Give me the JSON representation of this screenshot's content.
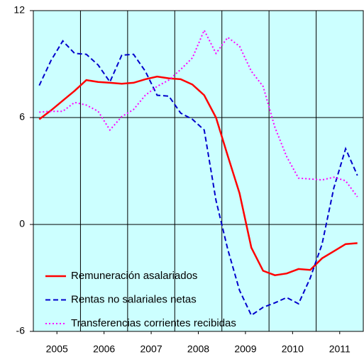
{
  "chart_data": {
    "type": "line",
    "x": [
      2005.125,
      2005.375,
      2005.625,
      2005.875,
      2006.125,
      2006.375,
      2006.625,
      2006.875,
      2007.125,
      2007.375,
      2007.625,
      2007.875,
      2008.125,
      2008.375,
      2008.625,
      2008.875,
      2009.125,
      2009.375,
      2009.625,
      2009.875,
      2010.125,
      2010.375,
      2010.625,
      2010.875,
      2011.125,
      2011.375,
      2011.625,
      2011.875
    ],
    "xlim": [
      2005,
      2012
    ],
    "xticks": [
      {
        "value": 2005.5,
        "label": "2005"
      },
      {
        "value": 2006.5,
        "label": "2006"
      },
      {
        "value": 2007.5,
        "label": "2007"
      },
      {
        "value": 2008.5,
        "label": "2008"
      },
      {
        "value": 2009.5,
        "label": "2009"
      },
      {
        "value": 2010.5,
        "label": "2010"
      },
      {
        "value": 2011.5,
        "label": "2011"
      }
    ],
    "ylim": [
      -6,
      12
    ],
    "yticks": [
      -6,
      0,
      6,
      12
    ],
    "grid": true,
    "legend": "lower left",
    "series": [
      {
        "name": "Remuneración asalariados",
        "color": "#ff0000",
        "line_style": "solid",
        "values": [
          5.9,
          6.4,
          6.95,
          7.5,
          8.1,
          8.0,
          7.95,
          7.9,
          7.95,
          8.15,
          8.3,
          8.2,
          8.15,
          7.85,
          7.25,
          6.0,
          3.85,
          1.75,
          -1.3,
          -2.6,
          -2.85,
          -2.75,
          -2.5,
          -2.55,
          -1.9,
          -1.5,
          -1.1,
          -1.05
        ]
      },
      {
        "name": "Rentas no salariales netas",
        "color": "#0000cc",
        "line_style": "dashed",
        "values": [
          7.8,
          9.2,
          10.3,
          9.6,
          9.55,
          8.95,
          8.0,
          9.5,
          9.55,
          8.6,
          7.25,
          7.2,
          6.25,
          5.9,
          5.3,
          1.35,
          -1.4,
          -3.7,
          -5.1,
          -4.65,
          -4.4,
          -4.1,
          -4.45,
          -3.0,
          -1.1,
          2.05,
          4.25,
          2.75
        ]
      },
      {
        "name": "Transferencias corrientes recibidas",
        "color": "#ff00ff",
        "line_style": "dotted",
        "values": [
          6.3,
          6.35,
          6.35,
          6.85,
          6.7,
          6.35,
          5.3,
          6.05,
          6.45,
          7.25,
          7.75,
          8.1,
          8.7,
          9.35,
          10.9,
          9.6,
          10.5,
          10.0,
          8.6,
          7.75,
          5.45,
          3.8,
          2.6,
          2.55,
          2.5,
          2.65,
          2.45,
          1.55
        ]
      }
    ]
  }
}
